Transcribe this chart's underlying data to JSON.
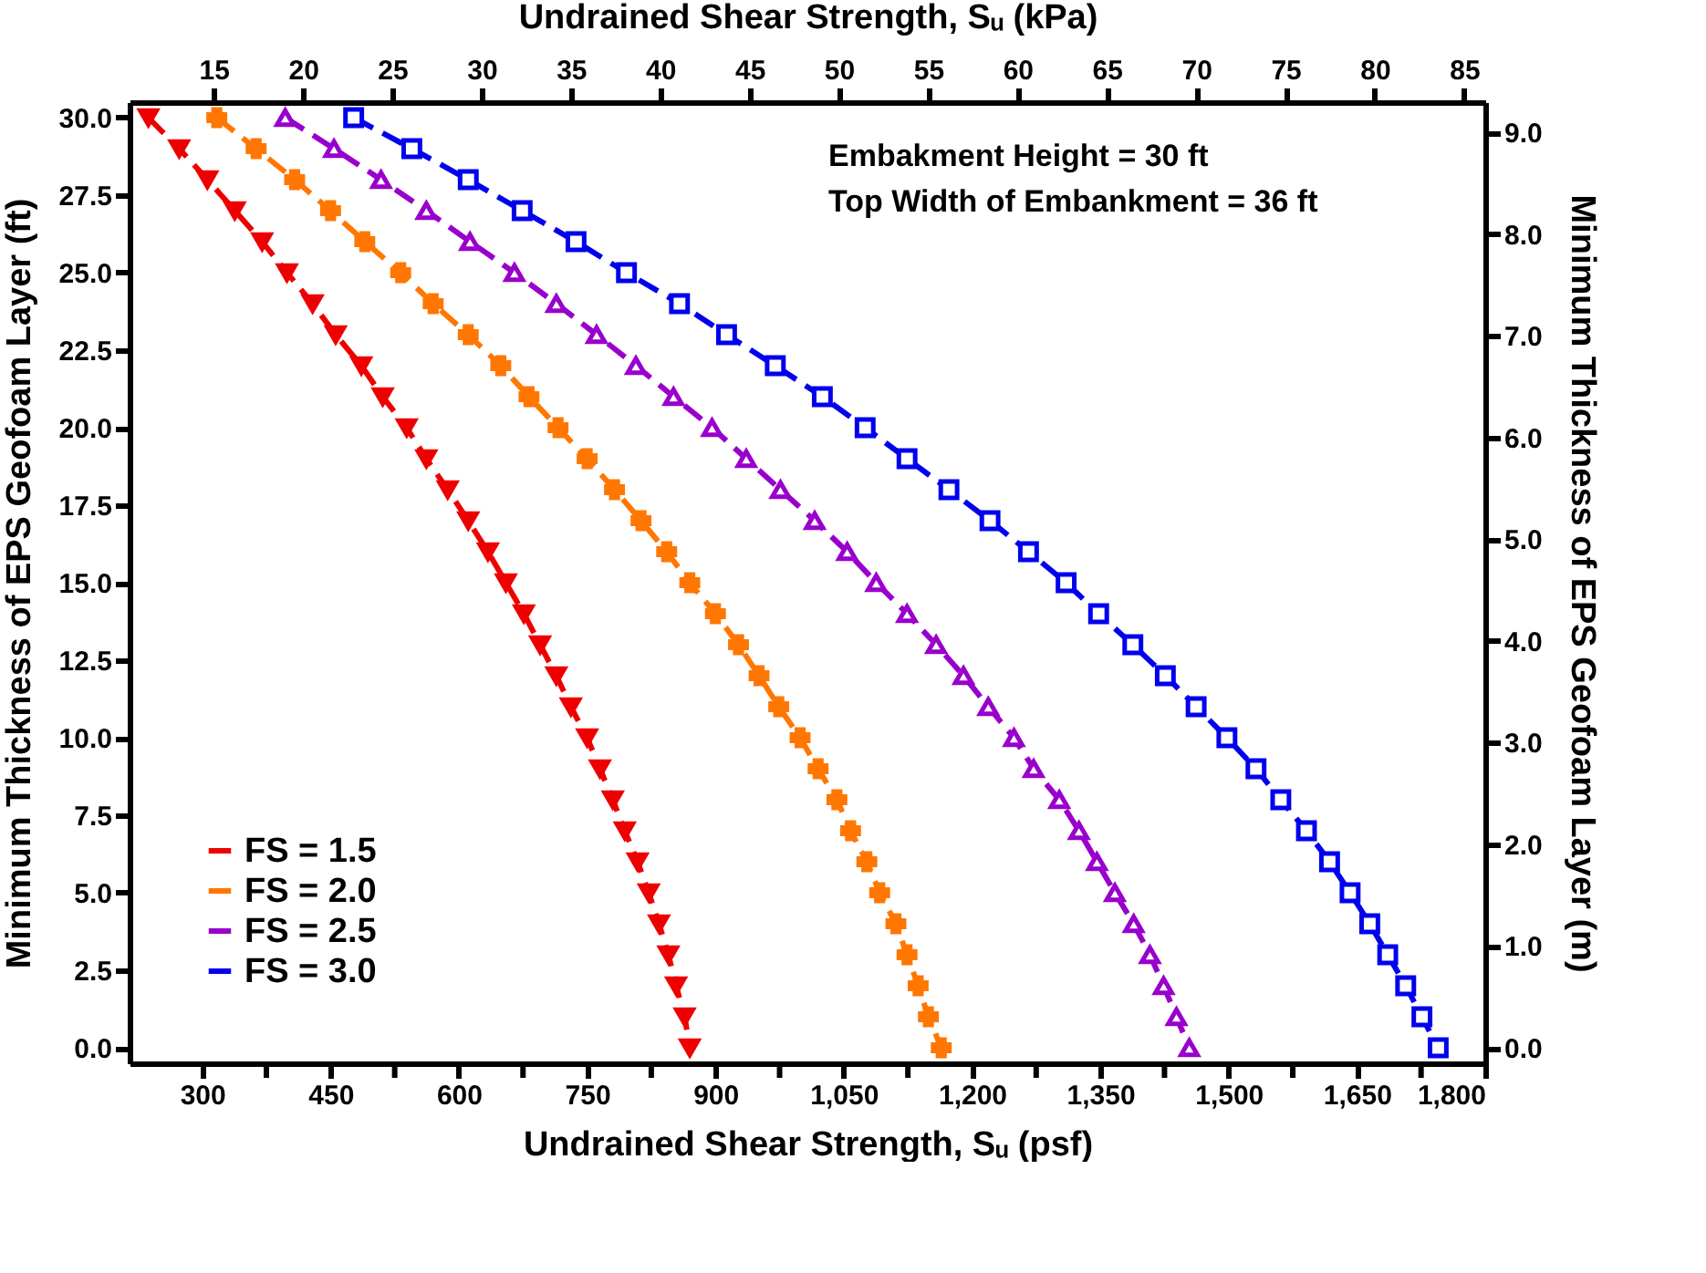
{
  "chart_data": {
    "type": "line",
    "xlabel": "Undrained Shear Strength, Sᵤ (psf)",
    "x2label": "Undrained Shear Strength, Sᵤ (kPa)",
    "ylabel": "Minimum Thickness of EPS Geofoam Layer (ft)",
    "y2label": "Minimum Thickness of EPS Geofoam Layer (m)",
    "annotations": [
      "Embakment Height = 30 ft",
      "Top Width of Embankment = 36 ft"
    ],
    "series": [
      {
        "name": "FS = 1.5",
        "color": "#ee0000",
        "marker": "triangle-down",
        "x": [
          237,
          273,
          306,
          338,
          370,
          399,
          429,
          456,
          486,
          511,
          539,
          562,
          587,
          611,
          634,
          655,
          676,
          695,
          714,
          731,
          750,
          765,
          780,
          794,
          809,
          822,
          834,
          845,
          854,
          864,
          870
        ],
        "values": [
          30,
          29,
          28,
          27,
          26,
          25,
          24,
          23,
          22,
          21,
          20,
          19,
          18,
          17,
          16,
          15,
          14,
          13,
          12,
          11,
          10,
          9,
          8,
          7,
          6,
          5,
          4,
          3,
          2,
          1,
          0
        ]
      },
      {
        "name": "FS = 2.0",
        "color": "#ff7700",
        "marker": "cross",
        "x": [
          317,
          363,
          408,
          450,
          490,
          532,
          570,
          611,
          649,
          682,
          716,
          750,
          782,
          813,
          843,
          870,
          900,
          927,
          951,
          974,
          999,
          1020,
          1042,
          1058,
          1077,
          1092,
          1111,
          1124,
          1137,
          1149,
          1164
        ],
        "values": [
          30,
          29,
          28,
          27,
          26,
          25,
          24,
          23,
          22,
          21,
          20,
          19,
          18,
          17,
          16,
          15,
          14,
          13,
          12,
          11,
          10,
          9,
          8,
          7,
          6,
          5,
          4,
          3,
          2,
          1,
          0
        ]
      },
      {
        "name": "FS = 2.5",
        "color": "#9900cc",
        "marker": "triangle",
        "x": [
          397,
          454,
          509,
          562,
          613,
          665,
          714,
          761,
          807,
          851,
          896,
          936,
          976,
          1016,
          1054,
          1088,
          1124,
          1158,
          1190,
          1219,
          1249,
          1272,
          1302,
          1325,
          1346,
          1367,
          1389,
          1408,
          1424,
          1439,
          1454
        ],
        "values": [
          30,
          29,
          28,
          27,
          26,
          25,
          24,
          23,
          22,
          21,
          20,
          19,
          18,
          17,
          16,
          15,
          14,
          13,
          12,
          11,
          10,
          9,
          8,
          7,
          6,
          5,
          4,
          3,
          2,
          1,
          0
        ]
      },
      {
        "name": "FS = 3.0",
        "color": "#0000ee",
        "marker": "square",
        "x": [
          477,
          545,
          611,
          674,
          737,
          796,
          858,
          913,
          970,
          1025,
          1075,
          1124,
          1173,
          1221,
          1266,
          1310,
          1348,
          1388,
          1426,
          1462,
          1498,
          1532,
          1561,
          1591,
          1618,
          1642,
          1665,
          1686,
          1707,
          1726,
          1745
        ],
        "values": [
          30,
          29,
          28,
          27,
          26,
          25,
          24,
          23,
          22,
          21,
          20,
          19,
          18,
          17,
          16,
          15,
          14,
          13,
          12,
          11,
          10,
          9,
          8,
          7,
          6,
          5,
          4,
          3,
          2,
          1,
          0
        ]
      }
    ],
    "xlim": [
      215,
      1800
    ],
    "xticks": [
      300,
      {
        "value": 375,
        "label": null
      },
      450,
      {
        "value": 525,
        "label": null
      },
      600,
      {
        "value": 675,
        "label": null
      },
      750,
      {
        "value": 825,
        "label": null
      },
      900,
      {
        "value": 975,
        "label": null
      },
      {
        "value": 1050,
        "label": "1,050"
      },
      {
        "value": 1125,
        "label": null
      },
      {
        "value": 1200,
        "label": "1,200"
      },
      {
        "value": 1275,
        "label": null
      },
      {
        "value": 1350,
        "label": "1,350"
      },
      {
        "value": 1425,
        "label": null
      },
      {
        "value": 1500,
        "label": "1,500"
      },
      {
        "value": 1575,
        "label": null
      },
      {
        "value": 1650,
        "label": "1,650"
      },
      {
        "value": 1725,
        "label": null
      },
      {
        "value": 1800,
        "label": "1,800"
      }
    ],
    "x2lim": [
      10.29,
      86.18
    ],
    "x2ticks": [
      15,
      20,
      25,
      30,
      35,
      40,
      45,
      50,
      55,
      60,
      65,
      70,
      75,
      80,
      85
    ],
    "ylim": [
      -0.5,
      30.5
    ],
    "yticks": [
      {
        "value": 0,
        "label": "0.0"
      },
      2.5,
      {
        "value": 5,
        "label": "5.0"
      },
      7.5,
      {
        "value": 10,
        "label": "10.0"
      },
      12.5,
      {
        "value": 15,
        "label": "15.0"
      },
      17.5,
      {
        "value": 20,
        "label": "20.0"
      },
      22.5,
      {
        "value": 25,
        "label": "25.0"
      },
      27.5,
      {
        "value": 30,
        "label": "30.0"
      }
    ],
    "y2lim": [
      -0.1524,
      9.2964
    ],
    "y2ticks": [
      {
        "value": 0,
        "label": "0.0"
      },
      {
        "value": 1,
        "label": "1.0"
      },
      {
        "value": 2,
        "label": "2.0"
      },
      {
        "value": 3,
        "label": "3.0"
      },
      {
        "value": 4,
        "label": "4.0"
      },
      {
        "value": 5,
        "label": "5.0"
      },
      {
        "value": 6,
        "label": "6.0"
      },
      {
        "value": 7,
        "label": "7.0"
      },
      {
        "value": 8,
        "label": "8.0"
      },
      {
        "value": 9,
        "label": "9.0"
      }
    ],
    "line_style": "dashed",
    "legend": "bottom left"
  }
}
